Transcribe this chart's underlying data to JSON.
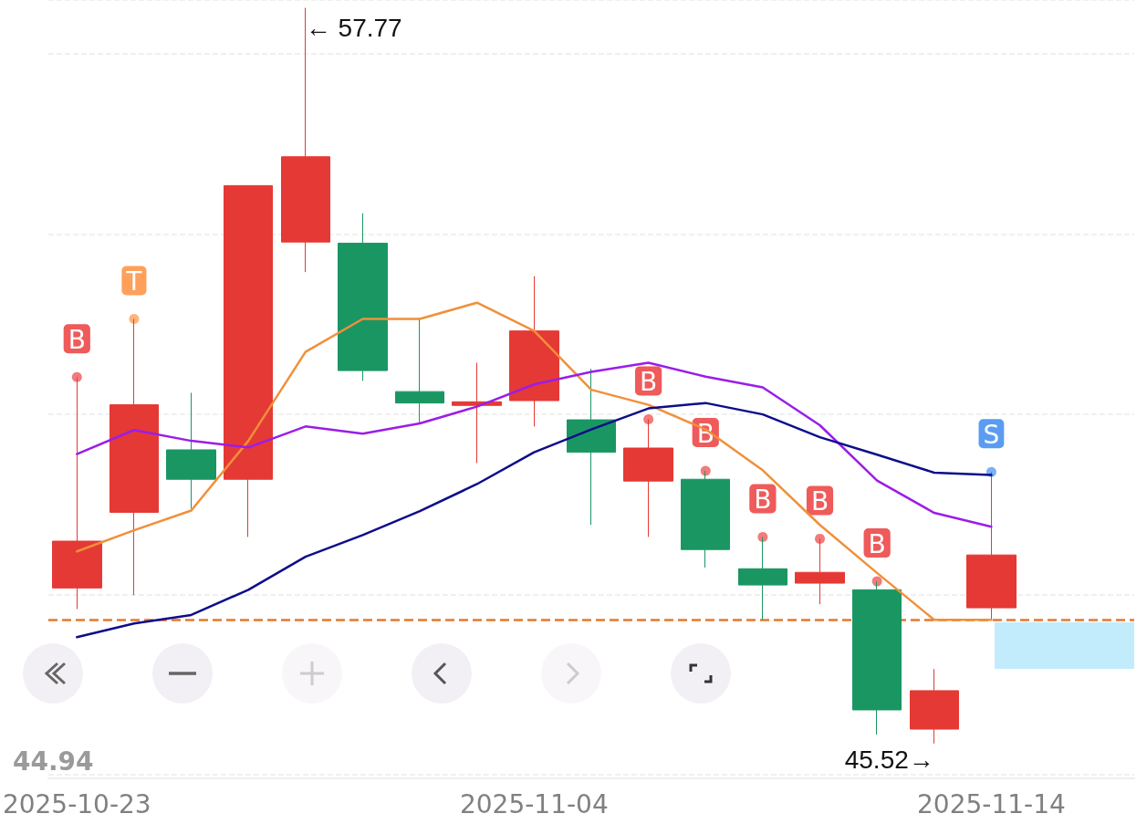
{
  "chart_data": {
    "type": "candlestick",
    "categories": [
      "2025-10-23",
      null,
      null,
      null,
      null,
      null,
      null,
      null,
      "2025-11-04",
      null,
      null,
      null,
      null,
      null,
      null,
      null,
      "2025-11-14"
    ],
    "ohlc": [
      [
        48.11,
        51.62,
        47.76,
        48.89
      ],
      [
        49.37,
        52.59,
        47.99,
        51.16
      ],
      [
        50.41,
        51.36,
        49.43,
        49.92
      ],
      [
        49.92,
        54.81,
        48.96,
        54.81
      ],
      [
        53.87,
        57.77,
        53.37,
        55.29
      ],
      [
        53.85,
        54.35,
        51.56,
        51.73
      ],
      [
        51.38,
        52.61,
        50.85,
        51.19
      ],
      [
        51.15,
        51.86,
        50.19,
        51.21
      ],
      [
        51.23,
        53.3,
        50.8,
        52.39
      ],
      [
        50.91,
        51.76,
        49.16,
        50.37
      ],
      [
        49.89,
        50.92,
        48.96,
        50.44
      ],
      [
        49.92,
        50.06,
        48.45,
        48.75
      ],
      [
        48.43,
        48.96,
        47.58,
        48.16
      ],
      [
        48.19,
        48.93,
        47.84,
        48.37
      ],
      [
        48.08,
        48.22,
        45.67,
        46.08
      ],
      [
        45.76,
        46.76,
        45.52,
        46.4
      ],
      [
        47.78,
        50.04,
        47.58,
        48.66
      ]
    ],
    "colors": [
      "#e53935",
      "#e53935",
      "#1a9663",
      "#e53935",
      "#e53935",
      "#1a9663",
      "#1a9663",
      "#e53935",
      "#e53935",
      "#1a9663",
      "#e53935",
      "#1a9663",
      "#1a9663",
      "#e53935",
      "#1a9663",
      "#e53935",
      "#e53935"
    ],
    "series": [
      {
        "type": "line",
        "color": "#f0903a",
        "values": [
          48.72,
          49.07,
          49.4,
          50.56,
          52.04,
          52.59,
          52.59,
          52.86,
          52.39,
          51.41,
          51.16,
          50.75,
          50.07,
          49.16,
          48.36,
          47.58,
          47.58
        ]
      },
      {
        "type": "line",
        "color": "#9b1de8",
        "values": [
          50.34,
          50.74,
          50.56,
          50.45,
          50.8,
          50.68,
          50.85,
          51.13,
          51.5,
          51.71,
          51.86,
          51.63,
          51.45,
          50.82,
          49.9,
          49.36,
          49.13
        ]
      },
      {
        "type": "line",
        "color": "#0d0d8a",
        "values": [
          47.29,
          47.52,
          47.66,
          48.08,
          48.63,
          48.99,
          49.39,
          49.84,
          50.37,
          50.75,
          51.1,
          51.19,
          51.0,
          50.62,
          50.33,
          50.03,
          49.99
        ]
      },
      {
        "type": "scatter",
        "marker": "circle",
        "values": [
          51.62,
          52.59,
          null,
          null,
          null,
          null,
          null,
          null,
          null,
          null,
          50.92,
          50.06,
          48.96,
          48.93,
          48.22,
          null,
          50.04
        ],
        "value_labels": [
          "B",
          "T",
          null,
          null,
          null,
          null,
          null,
          null,
          null,
          null,
          "B",
          "B",
          "B",
          "B",
          "B",
          null,
          "S"
        ],
        "colors": [
          "#ef5a5a",
          "#ffa05a",
          null,
          null,
          null,
          null,
          null,
          null,
          null,
          null,
          "#ef5a5a",
          "#ef5a5a",
          "#ef5a5a",
          "#ef5a5a",
          "#ef5a5a",
          null,
          "#5b9cf2"
        ]
      }
    ],
    "value_labels": [
      null,
      null,
      null,
      null,
      "← 57.77",
      null,
      null,
      null,
      null,
      null,
      null,
      null,
      null,
      null,
      null,
      "45.52→",
      null
    ],
    "ylim": [
      44.94,
      57.9
    ],
    "grid": "y",
    "marker": "none",
    "ref_lines": [
      {
        "axis": "y",
        "value": 47.58,
        "color": "#e8772a",
        "line_style": "dashed"
      }
    ],
    "annotations": [
      "44.94"
    ]
  }
}
